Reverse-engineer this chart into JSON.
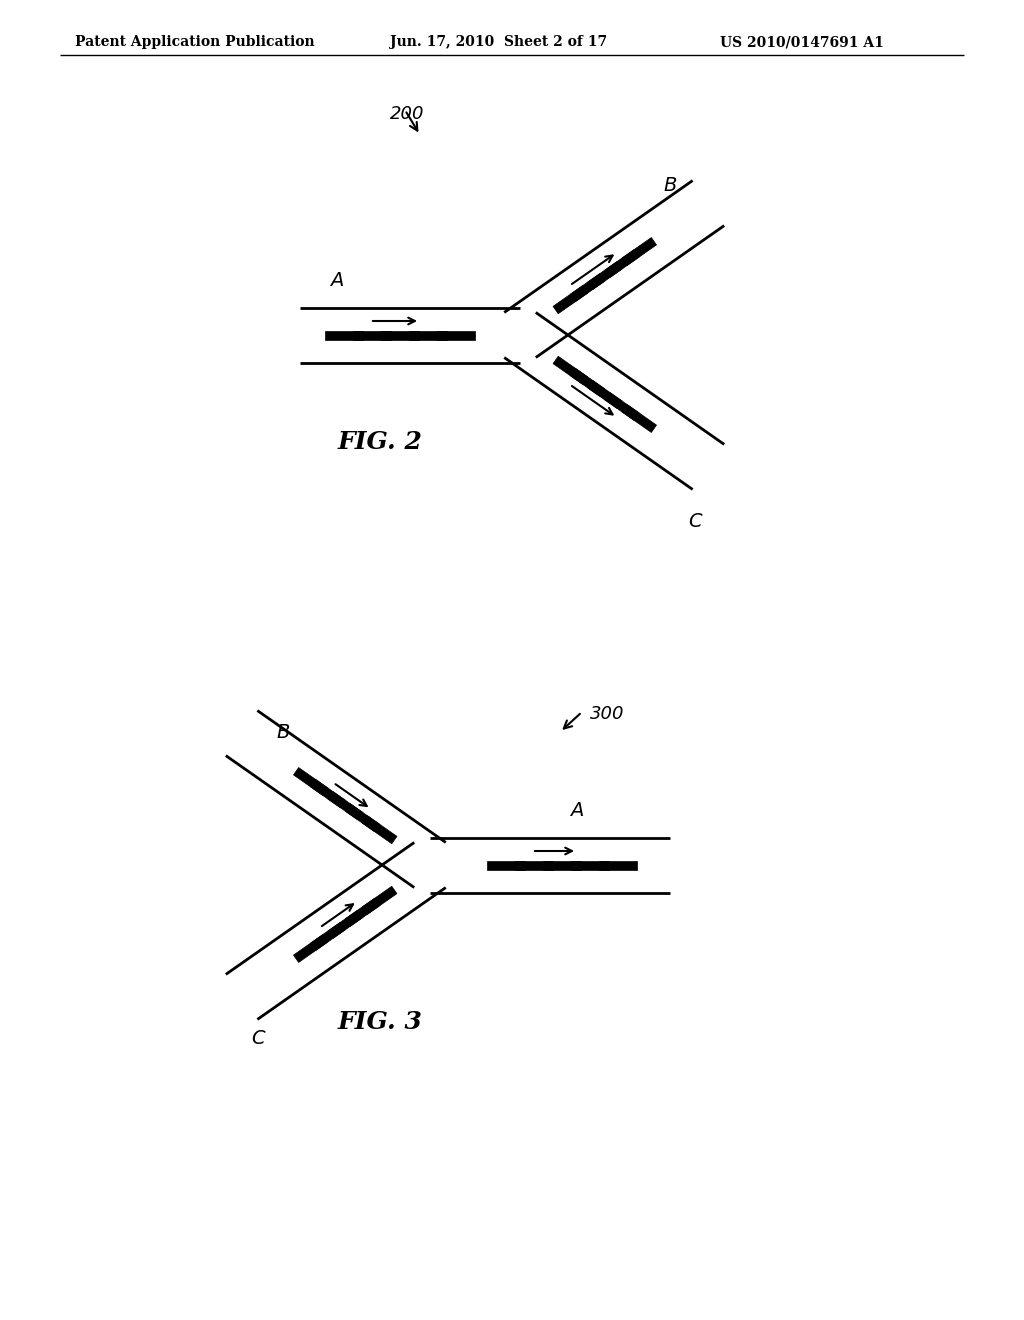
{
  "bg_color": "#ffffff",
  "header_text": "Patent Application Publication",
  "header_date": "Jun. 17, 2010  Sheet 2 of 17",
  "header_patent": "US 2010/0147691 A1",
  "fig2_label": "FIG. 2",
  "fig3_label": "FIG. 3",
  "ref200": "200",
  "ref300": "300",
  "label_A": "A",
  "label_B": "B",
  "label_C": "C"
}
